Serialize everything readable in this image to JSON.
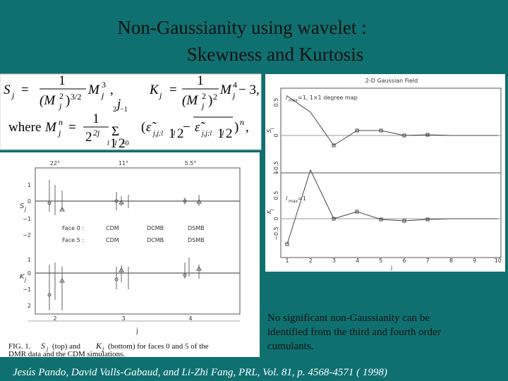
{
  "header": {
    "title_lines": [
      "Non-Gaussianity using wavelet :",
      "Skewness and Kurtosis"
    ]
  },
  "formula": [
    "S",
    "j",
    "=",
    "1",
    "(M",
    "2",
    "j",
    ")",
    "3/2",
    "M",
    "3",
    "j",
    ",",
    "K",
    "j",
    "=",
    "1",
    "(M",
    "2",
    "j",
    ")",
    "2",
    "M",
    "4",
    "j",
    "− 3,",
    "where",
    "M",
    "n",
    "j",
    "=",
    "1",
    "2",
    "2j",
    "Σ",
    "2",
    "j",
    "−1",
    "l",
    "1",
    ",l",
    "2",
    "=0",
    "(",
    "ε̃",
    "j,j;l",
    "1",
    ",l",
    "2",
    "−",
    "ε̃",
    "j,j;l",
    "1",
    ",l",
    "2",
    ")",
    "n",
    ","
  ],
  "left_figure": {
    "top_labels": [
      "22°",
      "11°",
      "5.5°"
    ],
    "skewness_axis": {
      "label": "S",
      "subscript": "j",
      "ticks": [
        "1",
        "0",
        "−1",
        "−2"
      ]
    },
    "kurtosis_axis": {
      "label": "K",
      "subscript": "j",
      "ticks": [
        "1",
        "0",
        "−1",
        "2"
      ]
    },
    "legend": [
      {
        "face": "Face 0 :",
        "items": [
          "CDM",
          "DCMB",
          "DSMB"
        ]
      },
      {
        "face": "Face 5 :",
        "items": [
          "CDM",
          "DCMB",
          "DSMB"
        ]
      }
    ],
    "x_ticks": [
      "2",
      "3",
      "4"
    ],
    "x_label": "j",
    "caption": {
      "line1": [
        "FIG. 1.",
        "S",
        "j",
        "(top) and",
        "K",
        "j",
        "(bottom) for faces 0 and 5 of the"
      ],
      "line2": "DMR data and the CDM simulations."
    }
  },
  "right_figure": {
    "title": "2-D Gaussian Field",
    "annotation_top": [
      "l",
      "max",
      "=1,  1×1 degree map"
    ],
    "annotation_bottom": [
      "l",
      "max",
      "=1"
    ],
    "skewness_axis": {
      "label": "S",
      "subscript": "j",
      "ticks": [
        "0.5",
        "0",
        "−0.5"
      ]
    },
    "kurtosis_axis": {
      "label": "K",
      "subscript": "j",
      "ticks": [
        "1",
        "0.5",
        "0",
        "−0.5"
      ]
    },
    "x_ticks": [
      "1",
      "2",
      "3",
      "4",
      "5",
      "6",
      "7",
      "8",
      "9",
      "10"
    ],
    "x_label": "j"
  },
  "body": [
    "No significant non-Gaussianity can be",
    "identified from the third and fourth order",
    "cumulants."
  ],
  "citation": "Jesús Pando, David Valls-Gabaud,  and Li-Zhi Fang,  PRL, Vol. 81, p. 4568-4571 ( 1998)"
}
